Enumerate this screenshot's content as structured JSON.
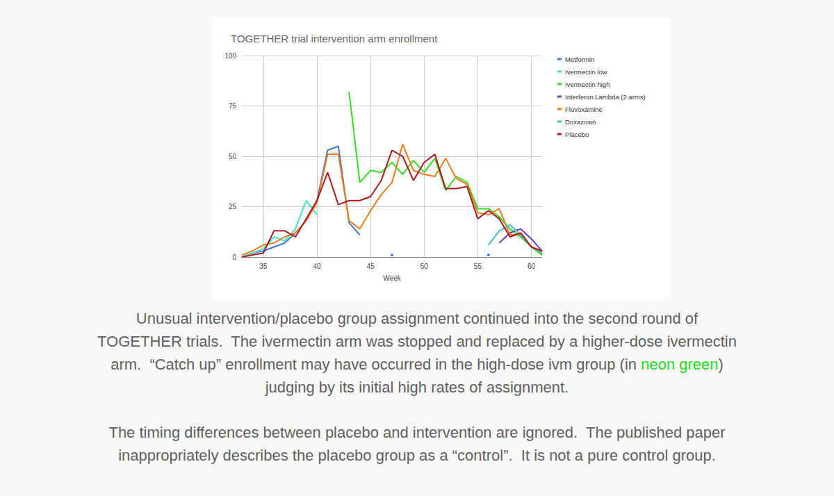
{
  "chart_data": {
    "type": "line",
    "title": "TOGETHER trial intervention arm enrollment",
    "x_label": "Week",
    "x": [
      33,
      34,
      35,
      36,
      37,
      38,
      39,
      40,
      41,
      42,
      43,
      44,
      45,
      46,
      47,
      48,
      49,
      50,
      51,
      52,
      53,
      54,
      55,
      56,
      57,
      58,
      59,
      60,
      61
    ],
    "xlim": [
      33,
      61
    ],
    "xticks": [
      35,
      40,
      45,
      50,
      55,
      60
    ],
    "ylim": [
      0,
      100
    ],
    "yticks": [
      0,
      25,
      50,
      75,
      100
    ],
    "grid": true,
    "legend": "right",
    "series": [
      {
        "name": "Metformin",
        "color": "#3c78d8",
        "values": [
          0,
          2,
          3,
          5,
          7,
          12,
          18,
          28,
          53,
          55,
          17,
          11,
          null,
          null,
          1,
          null,
          null,
          null,
          null,
          null,
          null,
          null,
          null,
          1,
          null,
          null,
          null,
          null,
          null
        ]
      },
      {
        "name": "Ivermectin low",
        "color": "#3ee6c1",
        "values": [
          0,
          2,
          4,
          10,
          8,
          14,
          28,
          21,
          null,
          null,
          null,
          null,
          null,
          null,
          null,
          null,
          null,
          null,
          null,
          null,
          null,
          null,
          null,
          null,
          null,
          null,
          null,
          null,
          null
        ]
      },
      {
        "name": "Ivermectin high",
        "color": "#33dd22",
        "values": [
          null,
          null,
          null,
          null,
          null,
          null,
          null,
          null,
          null,
          null,
          82,
          37,
          43,
          42,
          47,
          41,
          48,
          42,
          49,
          33,
          40,
          37,
          24,
          24,
          20,
          14,
          10,
          5,
          1
        ]
      },
      {
        "name": "Interferon Lambda (2 arms)",
        "color": "#6a3fb5",
        "values": [
          null,
          null,
          null,
          null,
          null,
          null,
          null,
          null,
          null,
          null,
          null,
          null,
          null,
          null,
          null,
          null,
          null,
          null,
          null,
          null,
          null,
          null,
          null,
          null,
          7,
          12,
          14,
          9,
          3
        ]
      },
      {
        "name": "Fluvoxamine",
        "color": "#f07b1a",
        "values": [
          1,
          3,
          6,
          7,
          10,
          12,
          18,
          27,
          51,
          51,
          18,
          14,
          23,
          31,
          37,
          56,
          43,
          41,
          40,
          49,
          39,
          36,
          22,
          21,
          24,
          11,
          11,
          5,
          2
        ]
      },
      {
        "name": "Doxazosin",
        "color": "#46bdc6",
        "values": [
          null,
          null,
          null,
          null,
          null,
          null,
          null,
          null,
          null,
          null,
          null,
          null,
          null,
          null,
          null,
          null,
          null,
          null,
          null,
          null,
          null,
          null,
          null,
          6,
          13,
          16,
          11,
          5,
          2
        ]
      },
      {
        "name": "Placebo",
        "color": "#b0171f",
        "values": [
          0,
          1,
          2,
          13,
          13,
          10,
          19,
          28,
          42,
          26,
          28,
          28,
          30,
          38,
          53,
          50,
          38,
          47,
          51,
          34,
          34,
          35,
          19,
          23,
          19,
          10,
          12,
          5,
          3
        ]
      }
    ]
  },
  "caption": {
    "paragraphs": [
      [
        "Unusual intervention/placebo group assignment continued into the second round of",
        "TOGETHER trials.  The ivermectin arm was stopped and replaced by a higher-dose ivermectin",
        "arm.  “Catch up” enrollment may have occurred in the high-dose ivm group (in neon green)",
        "judging by its initial high rates of assignment."
      ],
      [
        "The timing differences between placebo and intervention are ignored.  The published paper",
        "inappropriately describes the placebo group as a “control”.  It is not a pure control group."
      ]
    ],
    "highlight": {
      "text": "neon green",
      "color": "#22dd22"
    }
  }
}
